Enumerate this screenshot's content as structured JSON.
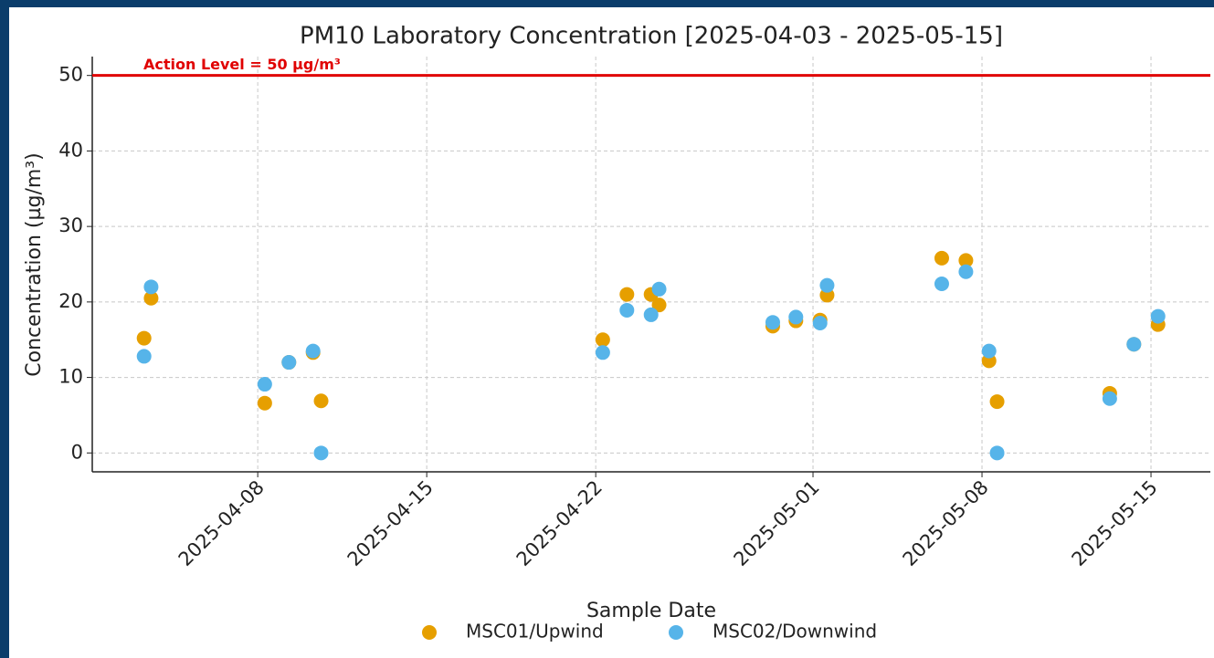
{
  "chart_data": {
    "type": "scatter",
    "title": "PM10 Laboratory Concentration [2025-04-03 - 2025-05-15]",
    "xlabel": "Sample Date",
    "ylabel": "Concentration (µg/m³)",
    "x": [
      "2025-04-03T07:00",
      "2025-04-03T14:00",
      "2025-04-08T07:00",
      "2025-04-09T07:00",
      "2025-04-10T07:00",
      "2025-04-10T15:00",
      "2025-04-22T07:00",
      "2025-04-23T07:00",
      "2025-04-24T07:00",
      "2025-04-24T15:00",
      "2025-04-29T08:00",
      "2025-04-30T07:00",
      "2025-05-01T07:00",
      "2025-05-01T14:00",
      "2025-05-06T08:00",
      "2025-05-07T08:00",
      "2025-05-08T07:00",
      "2025-05-08T15:00",
      "2025-05-13T07:00",
      "2025-05-14T07:00",
      "2025-05-15T07:00"
    ],
    "series": [
      {
        "name": "MSC01/Upwind",
        "color": "#E69F00",
        "values": [
          15.2,
          20.5,
          6.6,
          12.0,
          13.3,
          6.9,
          15.0,
          21.0,
          21.0,
          19.6,
          16.8,
          17.5,
          17.6,
          20.9,
          25.8,
          25.5,
          12.2,
          6.8,
          7.9,
          14.4,
          17.0
        ]
      },
      {
        "name": "MSC02/Downwind",
        "color": "#56B4E9",
        "values": [
          12.8,
          22.0,
          9.1,
          12.0,
          13.5,
          0.0,
          13.3,
          18.9,
          18.3,
          21.7,
          17.3,
          18.0,
          17.2,
          22.2,
          22.4,
          24.0,
          13.5,
          0.0,
          7.2,
          14.4,
          18.1
        ]
      }
    ],
    "threshold": {
      "value": 50,
      "label": "Action Level = 50 µg/m³",
      "color": "#e00000"
    },
    "xlim": [
      "2025-04-01T03:30",
      "2025-05-17T11:00"
    ],
    "xticks": [
      "2025-04-08",
      "2025-04-15",
      "2025-04-22",
      "2025-05-01",
      "2025-05-08",
      "2025-05-15"
    ],
    "ylim": [
      -2.5,
      52.5
    ],
    "yticks": [
      0,
      10,
      20,
      30,
      40,
      50
    ],
    "grid": true,
    "legend": "bottom"
  }
}
